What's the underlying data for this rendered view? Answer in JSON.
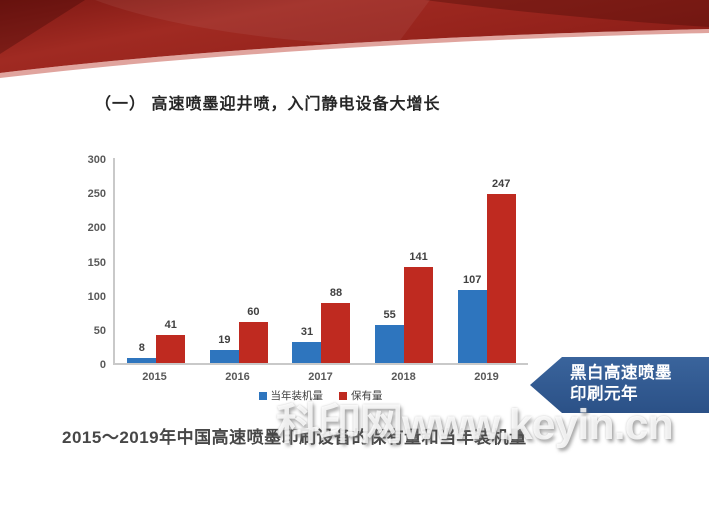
{
  "slide": {
    "title": "（一） 高速喷墨迎井喷，入门静电设备大增长",
    "caption": "2015～2019年中国高速喷墨印刷设备的保有量和当年装机量",
    "banner": {
      "line1": "黑白高速喷墨",
      "line2": "印刷元年",
      "color": "#30598F"
    },
    "watermark": "科印网www.keyin.cn"
  },
  "chart_data": {
    "type": "bar",
    "title": "",
    "xlabel": "",
    "ylabel": "",
    "categories": [
      "2015",
      "2016",
      "2017",
      "2018",
      "2019"
    ],
    "series": [
      {
        "name": "当年装机量",
        "color": "#2E75BE",
        "values": [
          8,
          19,
          31,
          55,
          107
        ]
      },
      {
        "name": "保有量",
        "color": "#BF2A20",
        "values": [
          41,
          60,
          88,
          141,
          247
        ]
      }
    ],
    "ylim": [
      0,
      300
    ],
    "yticks": [
      0,
      50,
      100,
      150,
      200,
      250,
      300
    ],
    "grid": false,
    "legend_position": "bottom",
    "data_labels": true
  },
  "colors": {
    "ribbon_red": "#9A241D",
    "axis_line": "#C9C9C9",
    "tick_text": "#595959",
    "label_text": "#404040"
  }
}
